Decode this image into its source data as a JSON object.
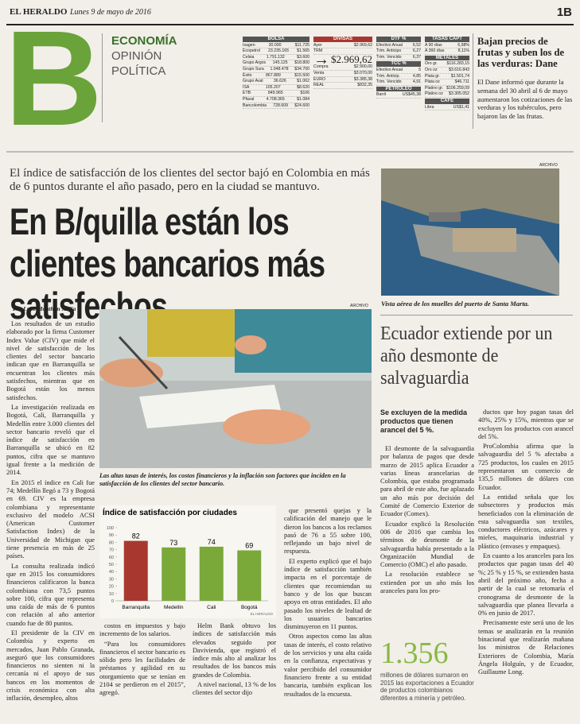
{
  "header": {
    "paper": "EL HERALDO",
    "date": "Lunes 9 de mayo de 2016",
    "page": "1B",
    "letter": "B",
    "sections": [
      "ECONOMÍA",
      "OPINIÓN",
      "POLÍTICA"
    ]
  },
  "markets": {
    "columns": [
      [
        {
          "title": "BOLSA",
          "rows": [
            [
              "Isagen",
              "30.000",
              "$11.725"
            ],
            [
              "Ecopetrol",
              "23.235.165",
              "$1.565"
            ],
            [
              "Celsia",
              "1.791.132",
              "$3.600"
            ],
            [
              "Grupo Argos",
              "145.125",
              "$18.800"
            ],
            [
              "Grupo Sura",
              "1.048.478",
              "$34.700"
            ],
            [
              "Éxito",
              "867.889",
              "$15.500"
            ],
            [
              "Grupo Aval",
              "36.626",
              "$1.062"
            ],
            [
              "ISA",
              "105.207",
              "$8.620"
            ],
            [
              "ETB",
              "849.965",
              "$106"
            ],
            [
              "Pfaval",
              "4.708.365",
              "$1.084"
            ],
            [
              "Bancolombia",
              "728.609",
              "$24.600"
            ]
          ]
        }
      ],
      [
        {
          "title": "DIVISAS",
          "rows": [
            [
              "Ayer",
              "$2.969,62"
            ],
            [
              "TRM",
              ""
            ]
          ],
          "highlight": "$2.969,62"
        },
        {
          "title": "",
          "rows": [
            [
              "Compra",
              "$2.900,00"
            ],
            [
              "Venta",
              "$3.070,00"
            ],
            [
              "EURO",
              "$3.385,38"
            ],
            [
              "REAL",
              "$832,35"
            ]
          ]
        }
      ],
      [
        {
          "title": "DTF %",
          "rows": [
            [
              "Efectivo Anual",
              "6,52"
            ],
            [
              "Trim. Anticipo",
              "6,27"
            ],
            [
              "Trim. Vencido",
              "6,37"
            ]
          ]
        },
        {
          "title": "TCC %",
          "rows": [
            [
              "Efectivo Anual",
              "5"
            ],
            [
              "Trim. Anticip.",
              "4,85"
            ],
            [
              "Trim. Vencido",
              "4,91"
            ]
          ]
        },
        {
          "title": "PETRÓLEO",
          "rows": [
            [
              "Barril",
              "US$45,38"
            ]
          ]
        }
      ],
      [
        {
          "title": "TASAS CAPT",
          "rows": [
            [
              "A 90 días",
              "6,98%"
            ],
            [
              "A 360 días",
              "8,11%"
            ]
          ]
        },
        {
          "title": "METALES",
          "rows": [
            [
              "Oro gr.",
              "$116.283,15"
            ],
            [
              "Oro oz",
              "$3.616.843"
            ],
            [
              "Plata gr.",
              "$1.501,74"
            ],
            [
              "Plata oz",
              "$46.711"
            ],
            [
              "Platino gr.",
              "$106.259,09"
            ],
            [
              "Platino oz",
              "$3.305.052"
            ]
          ]
        },
        {
          "title": "CAFÉ",
          "rows": [
            [
              "Libra",
              "US$1,41"
            ]
          ]
        }
      ]
    ]
  },
  "brief": {
    "title": "Bajan precios de frutas y suben los de las verduras: Dane",
    "body": "El Dane informó que durante la semana del 30 abril al 6 de mayo aumentaron los cotizaciones de las verduras y los tubérculos, pero bajaron las de las frutas."
  },
  "article": {
    "teaser": "El índice de satisfacción de los clientes del sector bajó en Colombia en más de 6 puntos durante el año pasado, pero en la ciudad se mantuvo.",
    "title": "En B/quilla están los clientes bancarios más satisfechos",
    "byline": "Por Lupe Mouthón Mejía",
    "photo_credit": "ARCHIVO",
    "photo_caption": "Las altas tasas de interés, los costos financieros y la inflación son factores que inciden en la satisfacción de los clientes del sector bancario.",
    "body": {
      "col1": [
        "Los resultados de un estudio elaborado por la firma Customer Index Value (CIV) que mide el nivel de satisfacción de los clientes del sector bancario indican que en Barranquilla se encuentran los clientes más satisfechos, mientras que en Bogotá están los menos satisfechos.",
        "La investigación realizada en Bogotá, Cali, Barranquilla y Medellín entre 3.000 clientes del sector bancario reveló que el índice de satisfacción en Barranquilla se ubicó en 82 puntos, cifra que se mantuvo igual frente a la medición de 2014.",
        "En 2015 el índice en Cali fue 74; Medellín llegó a 73 y Bogotá en 69. CIV es la empresa colombiana y representante exclusivo del modelo ACSI (American Customer Satisfaction Index) de la Universidad de Michigan que tiene presencia en más de 25 países.",
        "La consulta realizada indicó que en 2015 los consumidores financieros calificaron la banca colombiana con 73,5 puntos sobre 100, cifra que representa una caída de más de 6 puntos con relación al año anterior cuando fue de 80 puntos.",
        "El presidente de la CIV en Colombia y experto en mercados, Juan Pablo Granada, aseguró que los consumidores financieros no sienten ni la cercanía ni el apoyo de sus bancos en los momentos de crisis económica con alta inflación, desempleo, altos"
      ],
      "col2": [
        "costos en impuestos y bajo incremento de los salarios.",
        "“Para los consumidores financieros el sector bancario es sólido pero les facilidades de préstamos y agilidad en su otorgamiento que se tenían en 2104 se perdieron en el 2015”, agregó."
      ],
      "col3": [
        "Helm Bank obtuvo los índices de satisfacción más elevados seguido por Davivienda, que registró el índice más alto al analizar los resultados de los bancos más grandes de Colombia.",
        "A nivel nacional, 13 % de los clientes del sector dijo"
      ],
      "col4": [
        "que presentó quejas y la calificación del manejo que le dieron los bancos a los reclamos pasó de 76 a 55 sobre 100, reflejando un bajo nivel de respuesta.",
        "El experto explicó que el bajo índice de satisfacción también impacta en el porcentaje de clientes que recomiendan su banco y de los que buscan apoyo en otras entidades. El año pasado los niveles de lealtad de los usuarios bancarios disminuyeron en 11 puntos.",
        "Otros aspectos como las altas tasas de interés, el costo relativo de los servicios y una alta caída en la confianza, expectativas y valor percibido del consumidor financiero frente a su entidad bancaria, también explican los resultados de la encuesta."
      ]
    }
  },
  "chart_data": {
    "type": "bar",
    "title": "Índice de satisfacción por ciudades",
    "categories": [
      "Barranquilla",
      "Medellín",
      "Cali",
      "Bogotá"
    ],
    "values": [
      82,
      73,
      74,
      69
    ],
    "colors": [
      "#a8382f",
      "#7aa93a",
      "#7aa93a",
      "#7aa93a"
    ],
    "ylim": [
      0,
      100
    ],
    "yticks": [
      0,
      10,
      20,
      30,
      40,
      50,
      60,
      70,
      80,
      90,
      100
    ],
    "grid": false,
    "source": "EL HERALDO"
  },
  "ecuador": {
    "photo_credit": "ARCHIVO",
    "photo_caption": "Vista aérea de los muelles del puerto de Santa Marta.",
    "title": "Ecuador extiende por un año desmonte de salvaguardia",
    "subtitle": "Se excluyen de la medida productos que tienen arancel del 5 %.",
    "colA": [
      "El desmonte de la salvaguardia por balanza de pagos que desde marzo de 2015 aplica Ecuador a varias líneas arancelarias de Colombia, que estaba programada para abril de este año, fue aplazado un año más por decisión del Comité de Comercio Exterior de Ecuador (Comex).",
      "Ecuador explicó la Resolución 006 de 2016 que cambia los términos de desmonte de la salvaguardia había presentado a la Organización Mundial de Comercio (OMC) el año pasado.",
      "La resolución establece se extienden por un año más los aranceles para los pro-"
    ],
    "big_number": "1.356",
    "big_caption": "millones de dólares sumaron en 2015 las exportaciones a Ecuador de productos colombianos diferentes a minería y petróleo.",
    "colB": [
      "ductos que hoy pagan tasas del 40%, 25% y 15%, mientras que se excluyen los productos con arancel del 5%.",
      "ProColombia afirma que la salvaguardia del 5 % afectaba a 725 productos, los cuales en 2015 representaron un comercio de 135,5 millones de dólares con Ecuador.",
      "La entidad señala que los subsectores y productos más beneficiados con la eliminación de esta salvaguardia son textiles, conductores eléctricos, azúcares y mieles, maquinaria industrial y plástico (envases y empaques).",
      "En cuanto a los aranceles para los productos que pagan tasas del 40 %; 25 % y 15 %, se extienden hasta abril del próximo año, fecha a partir de la cual se retomaría el cronograma de desmonte de la salvaguardia que planea llevarla a 0% en junio de 2017.",
      "Precisamente este será uno de los temas se analizarán en la reunión binacional que realizarán mañana los ministros de Relaciones Exteriores de Colombia, María Ángela Holguín, y de Ecuador, Guillaume Long."
    ]
  }
}
